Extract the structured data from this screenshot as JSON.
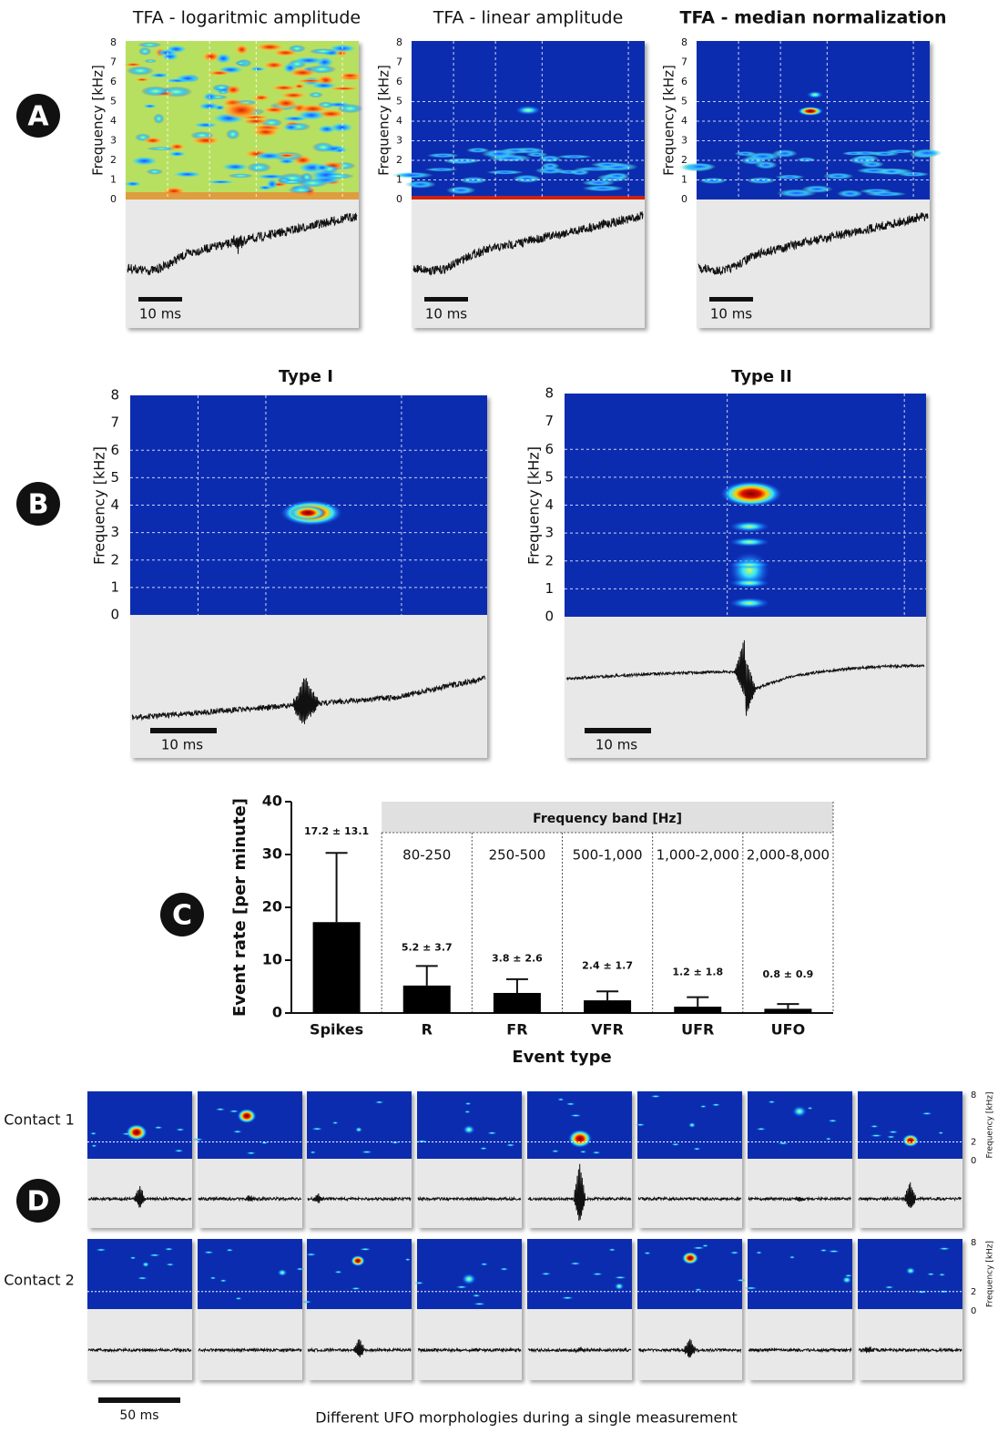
{
  "panel_a": {
    "label": "A",
    "titles": [
      "TFA - logaritmic amplitude",
      "TFA - linear amplitude",
      "TFA - median normalization"
    ],
    "ylabel": "Frequency [kHz]",
    "yticks": [
      0,
      1,
      2,
      3,
      4,
      5,
      6,
      7,
      8
    ],
    "scale_bar": "10 ms"
  },
  "panel_b": {
    "label": "B",
    "titles": [
      "Type I",
      "Type II"
    ],
    "ylabel": "Frequency [kHz]",
    "yticks": [
      0,
      1,
      2,
      3,
      4,
      5,
      6,
      7,
      8
    ],
    "scale_bar": "10 ms"
  },
  "chart_data": {
    "type": "bar",
    "label": "C",
    "ylabel": "Event rate [per minute]",
    "xlabel": "Event type",
    "categories": [
      "Spikes",
      "R",
      "FR",
      "VFR",
      "UFR",
      "UFO"
    ],
    "values": [
      17.2,
      5.2,
      3.8,
      2.4,
      1.2,
      0.8
    ],
    "errors": [
      13.1,
      3.7,
      2.6,
      1.7,
      1.8,
      0.9
    ],
    "value_labels": [
      "17.2 ± 13.1",
      "5.2 ± 3.7",
      "3.8 ± 2.6",
      "2.4 ± 1.7",
      "1.2 ± 1.8",
      "0.8 ± 0.9"
    ],
    "color": "#000000",
    "ylim": [
      0,
      40
    ],
    "yticks": [
      0,
      10,
      20,
      30,
      40
    ],
    "band_header": "Frequency band [Hz]",
    "band_labels": [
      "80-250",
      "250-500",
      "500-1,000",
      "1,000-2,000",
      "2,000-8,000"
    ]
  },
  "panel_d": {
    "label": "D",
    "contacts": [
      "Contact 1",
      "Contact 2"
    ],
    "ylabel": "Frequency [kHz]",
    "yticks": [
      0,
      2,
      8
    ],
    "scale_bar": "50 ms",
    "caption": "Different UFO morphologies during a single measurement"
  }
}
